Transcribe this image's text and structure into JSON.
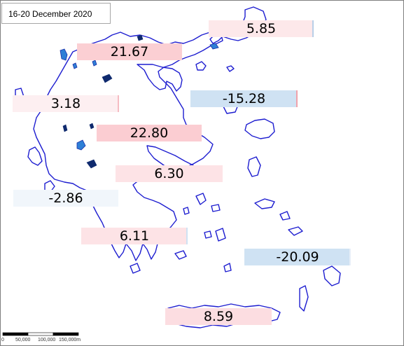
{
  "date_label": "16-20 December 2020",
  "regions": [
    {
      "id": "thrace",
      "value": "5.85",
      "fill": "#fde8ea",
      "edge": "#b8cfe8"
    },
    {
      "id": "central-macedonia",
      "value": "21.67",
      "fill": "#fbcfd3",
      "edge": ""
    },
    {
      "id": "epirus",
      "value": "3.18",
      "fill": "#fdeff1",
      "edge": "#f6bcc3"
    },
    {
      "id": "north-aegean",
      "value": "-15.28",
      "fill": "#cfe2f3",
      "edge": "#f0a2ab"
    },
    {
      "id": "thessaly",
      "value": "22.80",
      "fill": "#fbcdd2",
      "edge": ""
    },
    {
      "id": "central-greece",
      "value": "6.30",
      "fill": "#fde3e6",
      "edge": ""
    },
    {
      "id": "western-greece",
      "value": "-2.86",
      "fill": "#f1f6fb",
      "edge": ""
    },
    {
      "id": "peloponnese",
      "value": "6.11",
      "fill": "#fde3e6",
      "edge": "#cfe2f3"
    },
    {
      "id": "dodecanese",
      "value": "-20.09",
      "fill": "#cfe2f3",
      "edge": "#e8eff8"
    },
    {
      "id": "crete",
      "value": "8.59",
      "fill": "#fcdde1",
      "edge": ""
    }
  ],
  "scale": {
    "labels": [
      "0",
      "50,000",
      "100,000",
      "150,000m"
    ],
    "fill_colors": [
      "#000000",
      "#ffffff",
      "#000000"
    ]
  },
  "colors": {
    "coastline": "#1d1dd0",
    "lakes": "#2e7fd6",
    "positive": "#fbcfd3",
    "negative": "#cfe2f3"
  }
}
